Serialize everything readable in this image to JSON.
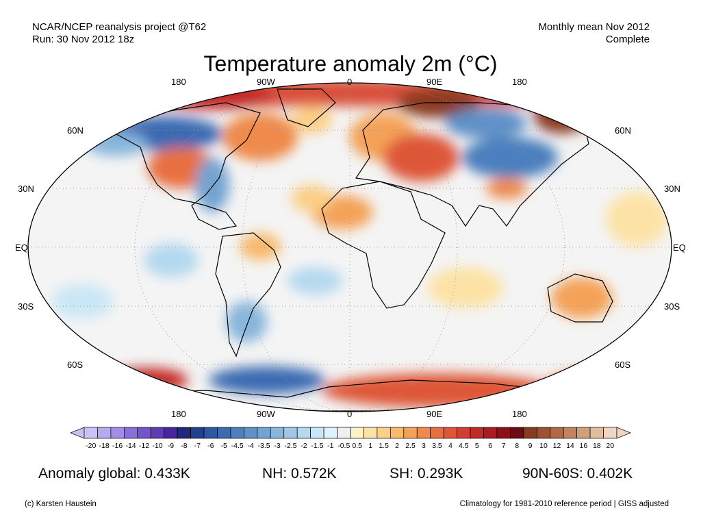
{
  "header": {
    "left_line1": "NCAR/NCEP reanalysis project @T62",
    "left_line2": "Run: 30 Nov 2012 18z",
    "right_line1": "Monthly mean Nov 2012",
    "right_line2": "Complete"
  },
  "title": "Temperature anomaly 2m (°C)",
  "longitude_labels": [
    "180",
    "90W",
    "0",
    "90E",
    "180"
  ],
  "latitude_labels": [
    "60N",
    "30N",
    "EQ",
    "30S",
    "60S"
  ],
  "colorbar": {
    "labels": [
      "-20",
      "-18",
      "-16",
      "-14",
      "-12",
      "-10",
      "-9",
      "-8",
      "-7",
      "-6",
      "-5",
      "-4.5",
      "-4",
      "-3.5",
      "-3",
      "-2.5",
      "-2",
      "-1.5",
      "-1",
      "-0.5",
      "0.5",
      "1",
      "1.5",
      "2",
      "2.5",
      "3",
      "3.5",
      "4",
      "4.5",
      "5",
      "6",
      "7",
      "8",
      "9",
      "10",
      "12",
      "14",
      "16",
      "18",
      "20"
    ],
    "colors": [
      "#c9c3f5",
      "#b7abef",
      "#a08de4",
      "#8a70d8",
      "#7455c9",
      "#5d3cb5",
      "#46279b",
      "#1f2a7a",
      "#22408f",
      "#2e57a4",
      "#3b6bb2",
      "#4c7fbd",
      "#5f91c7",
      "#73a3d1",
      "#88b6dc",
      "#9ec8e6",
      "#b4d9ef",
      "#cae7f6",
      "#dff2fb",
      "#f0f0f0",
      "#fff1c8",
      "#fde2a6",
      "#fbcf86",
      "#f8b96c",
      "#f4a259",
      "#ef8a4b",
      "#e87040",
      "#de5637",
      "#d23f2e",
      "#c22b27",
      "#ab1c21",
      "#8c101b",
      "#6d0a14",
      "#8a3a22",
      "#9e5030",
      "#b06a45",
      "#c2845e",
      "#d29f7b",
      "#e2bc9e",
      "#f0d6c2"
    ]
  },
  "stats": {
    "global": "Anomaly global: 0.433K",
    "nh": "NH: 0.572K",
    "sh": "SH: 0.293K",
    "polar": "90N-60S: 0.402K"
  },
  "footer": {
    "left": "(c) Karsten Haustein",
    "right": "Climatology for 1981-2010 reference period | GISS adjusted"
  }
}
